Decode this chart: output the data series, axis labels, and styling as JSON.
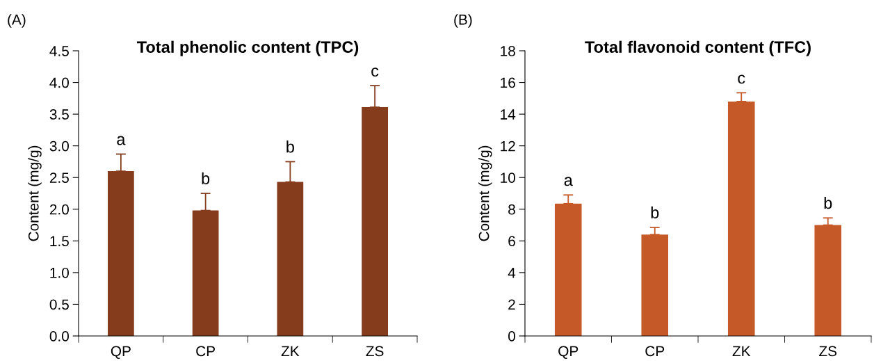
{
  "chart_data": [
    {
      "type": "bar",
      "title": "Total phenolic content (TPC)",
      "ylabel": "Content (mg/g)",
      "categories": [
        "QP",
        "CP",
        "ZK",
        "ZS"
      ],
      "values": [
        2.6,
        1.98,
        2.43,
        3.61
      ],
      "color": "#843c1c",
      "errors": [
        [
          2.6,
          2.87
        ],
        [
          1.98,
          2.25
        ],
        [
          2.43,
          2.75
        ],
        [
          3.61,
          3.95
        ]
      ],
      "ylim": [
        0,
        4.5
      ],
      "yticks": [
        {
          "value": 0,
          "label": "0.0"
        },
        0.5,
        {
          "value": 1,
          "label": "1.0"
        },
        1.5,
        {
          "value": 2,
          "label": "2.0"
        },
        2.5,
        {
          "value": 3,
          "label": "3.0"
        },
        3.5,
        {
          "value": 4,
          "label": "4.0"
        },
        4.5
      ],
      "grid": false,
      "annotations": [
        "(A)",
        {
          "text": "a",
          "x": "QP",
          "y": 2.87
        },
        {
          "text": "b",
          "x": "CP",
          "y": 2.25
        },
        {
          "text": "b",
          "x": "ZK",
          "y": 2.75
        },
        {
          "text": "c",
          "x": "ZS",
          "y": 3.95
        }
      ]
    },
    {
      "type": "bar",
      "title": "Total flavonoid content (TFC)",
      "ylabel": "Content (mg/g)",
      "categories": [
        "QP",
        "CP",
        "ZK",
        "ZS"
      ],
      "values": [
        8.35,
        6.4,
        14.8,
        7.0
      ],
      "color": "#c55a28",
      "errors": [
        [
          8.35,
          8.9
        ],
        [
          6.4,
          6.85
        ],
        [
          14.8,
          15.35
        ],
        [
          7.0,
          7.45
        ]
      ],
      "ylim": [
        0,
        18
      ],
      "yticks": [
        0,
        2,
        4,
        6,
        8,
        10,
        12,
        14,
        16,
        18
      ],
      "grid": false,
      "annotations": [
        "(B)",
        {
          "text": "a",
          "x": "QP",
          "y": 8.9
        },
        {
          "text": "b",
          "x": "CP",
          "y": 6.85
        },
        {
          "text": "c",
          "x": "ZK",
          "y": 15.35
        },
        {
          "text": "b",
          "x": "ZS",
          "y": 7.45
        }
      ]
    }
  ]
}
